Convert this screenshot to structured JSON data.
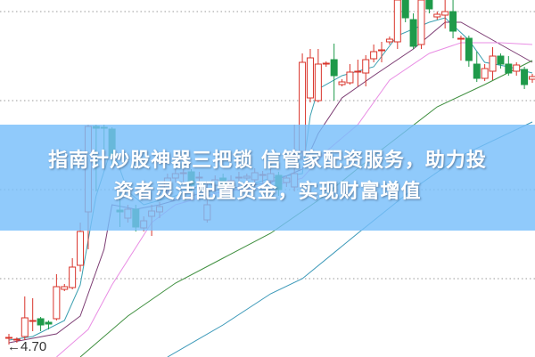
{
  "headline": {
    "line1": "指南针炒股神器三把锁 信管家配资服务，助力投",
    "line2": "资者灵活配置资金，实现财富增值"
  },
  "chart_data": {
    "type": "candlestick",
    "low_marker_label": "4.70",
    "low_marker_icon": "arrow-left-icon",
    "grid": "horizontal-dotted",
    "grid_values": [
      8.42,
      7.42,
      6.42,
      5.42
    ],
    "ylim": [
      4.55,
      8.55
    ],
    "colors": {
      "up": "#d9342b",
      "down": "#1f9a4a",
      "grid": "#9a9a9a",
      "banner": "#78befa"
    },
    "candles_ohlc": [
      [
        4.75,
        4.8,
        4.68,
        4.76
      ],
      [
        4.73,
        4.76,
        4.7,
        4.74
      ],
      [
        4.77,
        5.22,
        4.73,
        4.98
      ],
      [
        4.94,
        5.2,
        4.83,
        4.95
      ],
      [
        4.97,
        4.99,
        4.83,
        4.9
      ],
      [
        4.93,
        4.95,
        4.85,
        4.91
      ],
      [
        4.97,
        5.47,
        4.95,
        5.33
      ],
      [
        5.3,
        5.36,
        5.28,
        5.33
      ],
      [
        5.32,
        5.65,
        5.3,
        5.55
      ],
      [
        5.57,
        6.05,
        5.5,
        5.95
      ],
      [
        6.17,
        7.15,
        5.75,
        7.13
      ],
      [
        7.13,
        7.15,
        6.4,
        7.11
      ],
      [
        7.12,
        7.15,
        6.85,
        7.11
      ],
      [
        7.1,
        7.12,
        6.7,
        6.8
      ],
      [
        6.19,
        6.4,
        6.0,
        6.17
      ],
      [
        6.1,
        6.25,
        6.05,
        6.2
      ],
      [
        6.2,
        6.25,
        5.95,
        6.0
      ],
      [
        5.99,
        6.12,
        5.95,
        6.07
      ],
      [
        6.12,
        6.25,
        5.9,
        6.18
      ],
      [
        6.17,
        6.28,
        6.1,
        6.23
      ],
      [
        6.4,
        6.6,
        6.35,
        6.55
      ],
      [
        6.55,
        6.65,
        6.5,
        6.6
      ],
      [
        6.6,
        6.68,
        6.5,
        6.61
      ],
      [
        6.62,
        6.65,
        6.4,
        6.47
      ],
      [
        6.55,
        6.62,
        6.4,
        6.56
      ],
      [
        6.08,
        6.5,
        6.05,
        6.25
      ],
      [
        6.47,
        6.58,
        6.4,
        6.53
      ],
      [
        6.55,
        6.6,
        6.4,
        6.45
      ],
      [
        6.48,
        6.58,
        6.4,
        6.52
      ],
      [
        6.55,
        6.62,
        6.45,
        6.56
      ],
      [
        6.55,
        6.6,
        6.45,
        6.57
      ],
      [
        6.53,
        6.66,
        6.45,
        6.61
      ],
      [
        6.58,
        6.63,
        6.5,
        6.59
      ],
      [
        6.52,
        6.65,
        6.45,
        6.6
      ],
      [
        6.58,
        6.62,
        6.35,
        6.42
      ],
      [
        6.5,
        6.58,
        6.45,
        6.55
      ],
      [
        6.45,
        7.15,
        6.4,
        6.6
      ],
      [
        6.85,
        7.95,
        6.75,
        7.85
      ],
      [
        7.45,
        8.0,
        7.4,
        7.9
      ],
      [
        7.42,
        8.0,
        7.4,
        7.83
      ],
      [
        7.83,
        7.86,
        7.8,
        7.84
      ],
      [
        7.88,
        8.06,
        7.42,
        7.7
      ],
      [
        7.6,
        7.66,
        7.58,
        7.63
      ],
      [
        7.62,
        7.83,
        7.6,
        7.74
      ],
      [
        7.74,
        7.88,
        7.58,
        7.75
      ],
      [
        7.73,
        7.93,
        7.58,
        7.88
      ],
      [
        7.89,
        8.05,
        7.85,
        7.97
      ],
      [
        7.98,
        8.08,
        7.85,
        7.99
      ],
      [
        8.08,
        8.14,
        8.05,
        8.11
      ],
      [
        8.08,
        8.55,
        8.0,
        8.55
      ],
      [
        8.55,
        8.55,
        8.3,
        8.35
      ],
      [
        8.33,
        8.4,
        8.0,
        8.03
      ],
      [
        8.05,
        8.55,
        8.0,
        8.55
      ],
      [
        8.55,
        8.55,
        8.4,
        8.45
      ],
      [
        8.36,
        8.42,
        8.33,
        8.39
      ],
      [
        8.38,
        8.55,
        8.23,
        8.42
      ],
      [
        8.42,
        8.55,
        8.12,
        8.2
      ],
      [
        8.11,
        8.15,
        7.87,
        8.12
      ],
      [
        8.12,
        8.15,
        7.8,
        7.87
      ],
      [
        7.83,
        7.97,
        7.63,
        7.67
      ],
      [
        7.67,
        7.83,
        7.64,
        7.78
      ],
      [
        7.75,
        8.02,
        7.65,
        7.92
      ],
      [
        7.92,
        7.95,
        7.78,
        7.83
      ],
      [
        7.83,
        7.92,
        7.7,
        7.73
      ],
      [
        7.75,
        7.85,
        7.7,
        7.82
      ],
      [
        7.77,
        7.8,
        7.55,
        7.6
      ],
      [
        7.66,
        7.72,
        7.62,
        7.69
      ]
    ],
    "moving_averages": [
      {
        "color": "#3a9fb0",
        "points": [
          [
            0,
            4.73
          ],
          [
            3,
            4.77
          ],
          [
            7,
            4.95
          ],
          [
            9,
            5.35
          ],
          [
            10,
            5.85
          ],
          [
            11,
            6.35
          ],
          [
            13,
            6.9
          ],
          [
            15,
            6.4
          ],
          [
            17,
            6.25
          ],
          [
            21,
            6.35
          ],
          [
            25,
            6.5
          ],
          [
            28,
            6.4
          ],
          [
            33,
            6.55
          ],
          [
            37,
            6.6
          ],
          [
            38,
            7.25
          ],
          [
            39,
            7.55
          ],
          [
            42,
            7.7
          ],
          [
            46,
            7.8
          ],
          [
            49,
            8.15
          ],
          [
            53,
            8.3
          ],
          [
            55,
            8.35
          ],
          [
            58,
            8.1
          ],
          [
            60,
            7.85
          ],
          [
            63,
            7.8
          ],
          [
            66,
            7.73
          ]
        ]
      },
      {
        "color": "#7b3b72",
        "points": [
          [
            0,
            4.7
          ],
          [
            6,
            4.8
          ],
          [
            9,
            5.0
          ],
          [
            10,
            5.25
          ],
          [
            12,
            5.75
          ],
          [
            13,
            6.25
          ],
          [
            16,
            6.2
          ],
          [
            19,
            6.25
          ],
          [
            25,
            6.4
          ],
          [
            33,
            6.5
          ],
          [
            37,
            6.65
          ],
          [
            39,
            7.05
          ],
          [
            42,
            7.45
          ],
          [
            46,
            7.7
          ],
          [
            51,
            8.0
          ],
          [
            55,
            8.3
          ],
          [
            57,
            8.3
          ],
          [
            62,
            8.05
          ],
          [
            66,
            7.85
          ]
        ]
      },
      {
        "color": "#e98ee4",
        "points": [
          [
            6,
            4.54
          ],
          [
            10,
            4.85
          ],
          [
            13,
            5.35
          ],
          [
            18,
            6.05
          ],
          [
            21,
            6.25
          ],
          [
            27,
            6.4
          ],
          [
            33,
            6.45
          ],
          [
            37,
            6.55
          ],
          [
            40,
            6.85
          ],
          [
            44,
            7.15
          ],
          [
            48,
            7.65
          ],
          [
            53,
            7.95
          ],
          [
            57,
            8.07
          ],
          [
            62,
            8.07
          ],
          [
            66,
            8.05
          ]
        ]
      },
      {
        "color": "#3f8f3f",
        "points": [
          [
            9,
            4.54
          ],
          [
            15,
            5.0
          ],
          [
            21,
            5.37
          ],
          [
            27,
            5.65
          ],
          [
            33,
            5.93
          ],
          [
            39,
            6.3
          ],
          [
            46,
            6.8
          ],
          [
            54,
            7.35
          ],
          [
            60,
            7.6
          ],
          [
            66,
            7.87
          ]
        ]
      },
      {
        "color": "#3a98b8",
        "points": [
          [
            20,
            4.54
          ],
          [
            27,
            4.9
          ],
          [
            33,
            5.25
          ],
          [
            37,
            5.42
          ],
          [
            44,
            5.93
          ],
          [
            51,
            6.43
          ],
          [
            57,
            6.8
          ],
          [
            66,
            7.18
          ]
        ]
      }
    ]
  }
}
